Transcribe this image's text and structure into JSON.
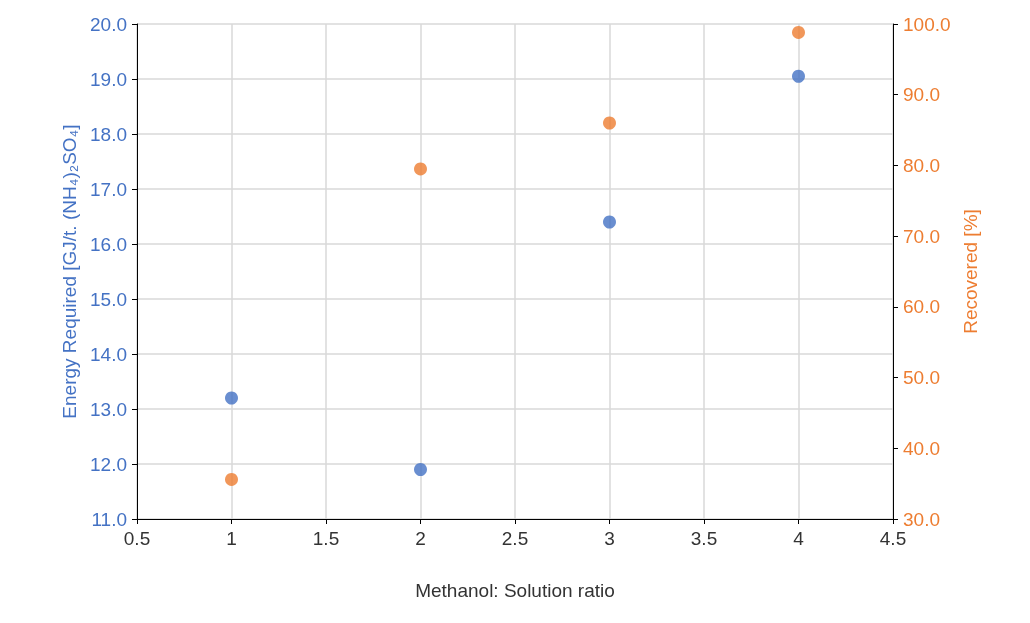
{
  "chart_data": {
    "type": "scatter",
    "xlabel": "Methanol: Solution ratio",
    "ylabel": "Energy Required [GJ/t. (NH₄)₂SO₄]",
    "y2label": "Recovered [%]",
    "x": [
      1,
      2,
      3,
      4
    ],
    "series": [
      {
        "color": "#4472c4",
        "values": [
          13.2,
          11.9,
          16.4,
          19.05
        ]
      },
      {
        "color": "#ed7d31",
        "values": [
          35.6,
          79.5,
          86.0,
          98.8
        ],
        "axis": "y2"
      }
    ],
    "xlim": [
      0.5,
      4.5
    ],
    "xticks": [
      0.5,
      1,
      1.5,
      2,
      2.5,
      3,
      3.5,
      4,
      4.5
    ],
    "ylim": [
      11,
      20
    ],
    "yticks": [
      {
        "value": 11,
        "label": "11.0"
      },
      {
        "value": 12,
        "label": "12.0"
      },
      {
        "value": 13,
        "label": "13.0"
      },
      {
        "value": 14,
        "label": "14.0"
      },
      {
        "value": 15,
        "label": "15.0"
      },
      {
        "value": 16,
        "label": "16.0"
      },
      {
        "value": 17,
        "label": "17.0"
      },
      {
        "value": 18,
        "label": "18.0"
      },
      {
        "value": 19,
        "label": "19.0"
      },
      {
        "value": 20,
        "label": "20.0"
      }
    ],
    "y2lim": [
      30,
      100
    ],
    "y2ticks": [
      {
        "value": 30,
        "label": "30.0"
      },
      {
        "value": 40,
        "label": "40.0"
      },
      {
        "value": 50,
        "label": "50.0"
      },
      {
        "value": 60,
        "label": "60.0"
      },
      {
        "value": 70,
        "label": "70.0"
      },
      {
        "value": 80,
        "label": "80.0"
      },
      {
        "value": 90,
        "label": "90.0"
      },
      {
        "value": 100,
        "label": "100.0"
      }
    ],
    "grid": true,
    "marker": "circle"
  }
}
